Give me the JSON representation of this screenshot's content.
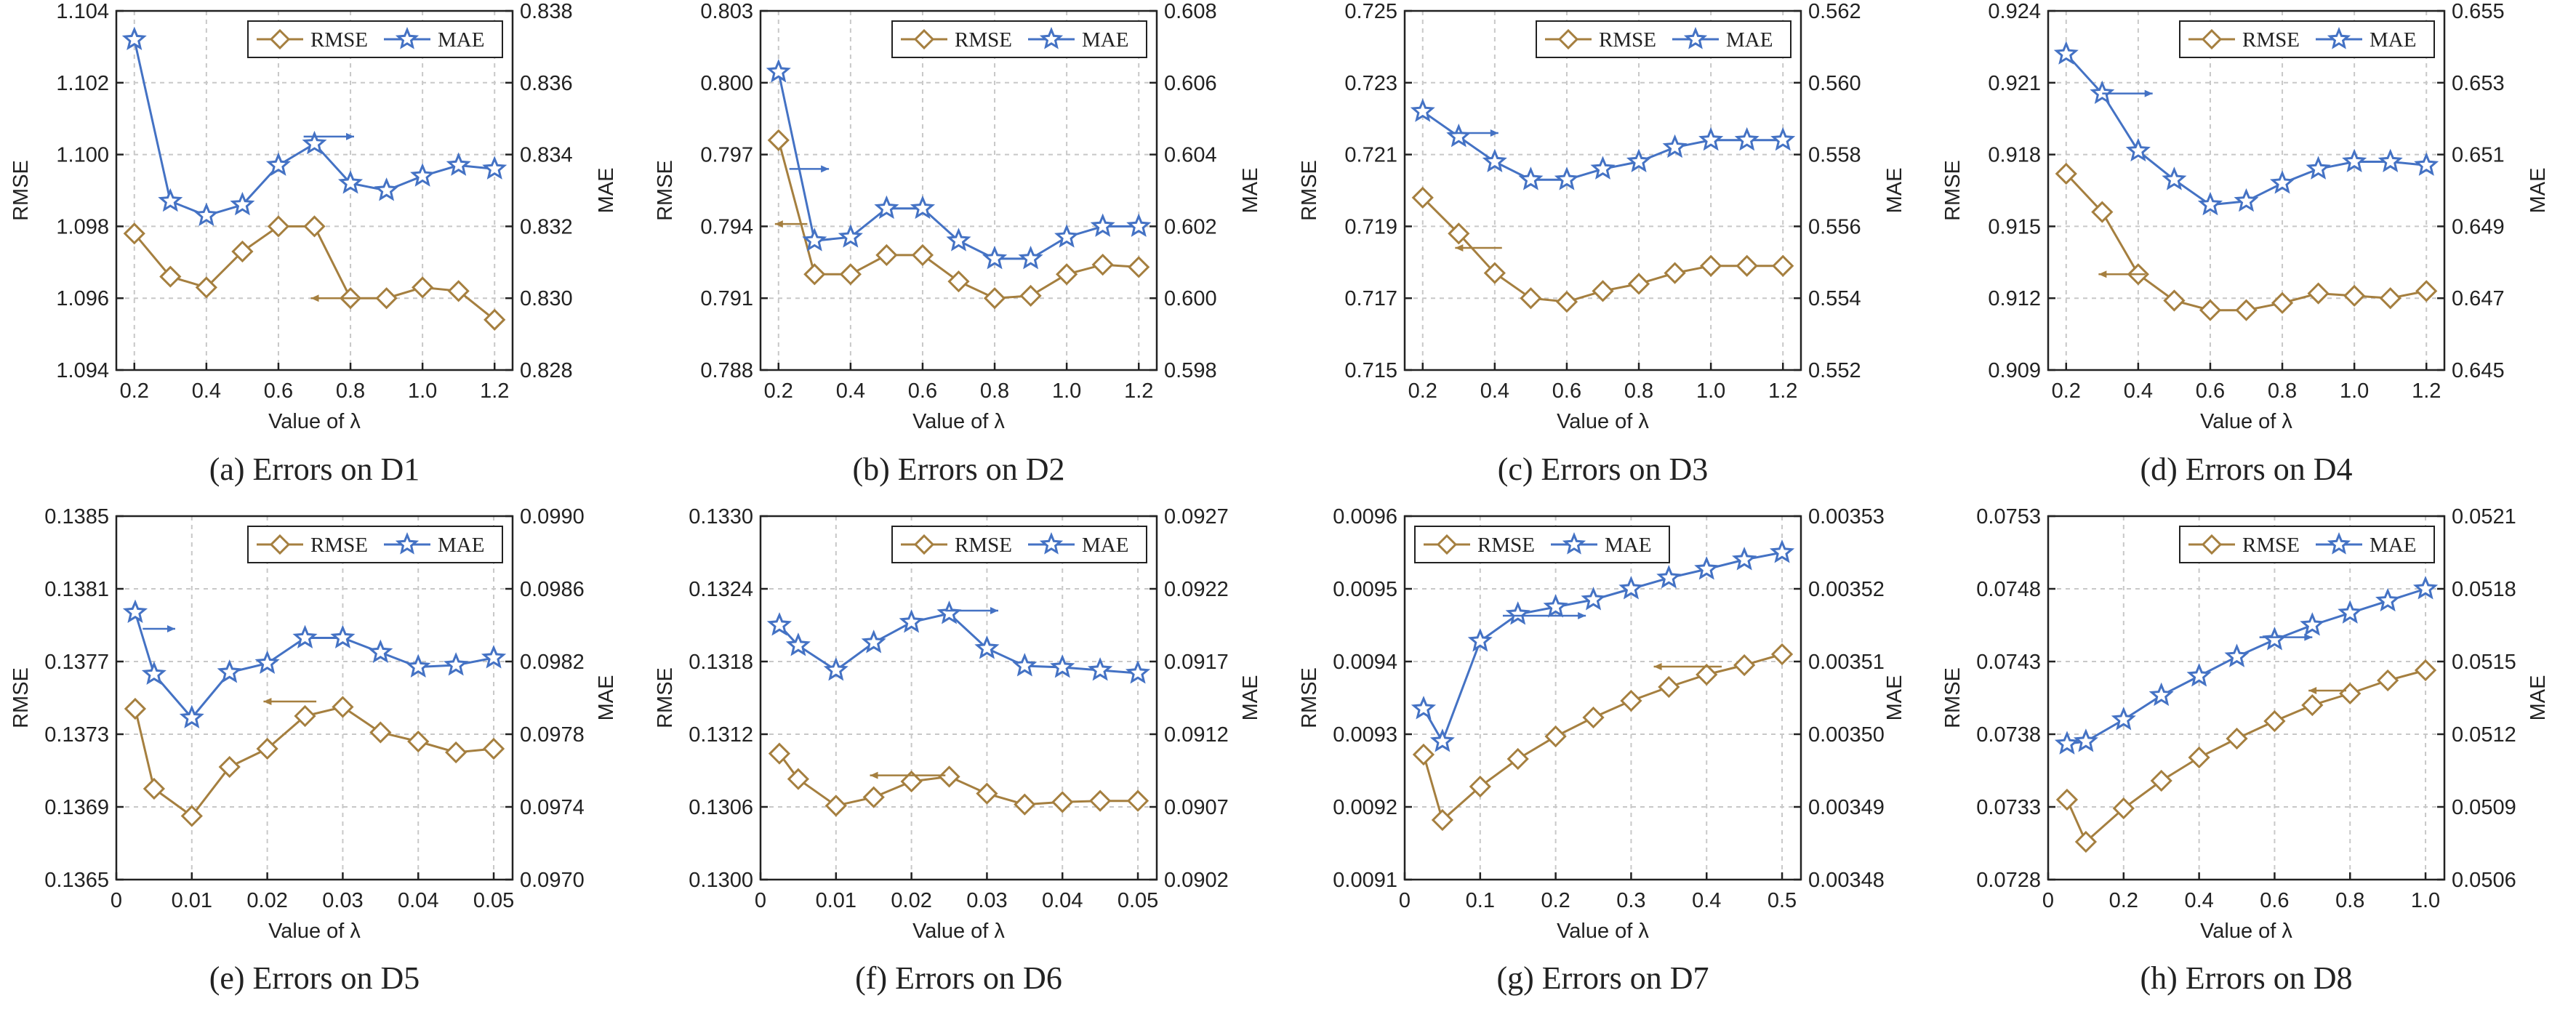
{
  "colors": {
    "rmse": "#A57F3F",
    "mae": "#4472C4",
    "grid": "#c8c8c8",
    "axis": "#222222"
  },
  "chart_data": [
    {
      "type": "line",
      "caption": "(a) Errors on D1",
      "xlabel": "Value of λ",
      "ylabel_left": "RMSE",
      "ylabel_right": "MAE",
      "x_ticks": [
        0.2,
        0.4,
        0.6,
        0.8,
        1.0,
        1.2
      ],
      "x_tick_labels": [
        "0.2",
        "0.4",
        "0.6",
        "0.8",
        "1.0",
        "1.2"
      ],
      "xlim": [
        0.15,
        1.25
      ],
      "ylim_left": [
        1.094,
        1.104
      ],
      "y_ticks_left": [
        "1.094",
        "1.096",
        "1.098",
        "1.100",
        "1.102",
        "1.104"
      ],
      "ylim_right": [
        0.828,
        0.838
      ],
      "y_ticks_right": [
        "0.828",
        "0.830",
        "0.832",
        "0.834",
        "0.836",
        "0.838"
      ],
      "legend": {
        "position": "top-right",
        "entries": [
          "RMSE",
          "MAE"
        ]
      },
      "grid": true,
      "x": [
        0.2,
        0.3,
        0.4,
        0.5,
        0.6,
        0.7,
        0.8,
        0.9,
        1.0,
        1.1,
        1.2
      ],
      "series": [
        {
          "name": "RMSE",
          "axis": "left",
          "marker": "diamond",
          "values": [
            1.0978,
            1.0966,
            1.0963,
            1.0973,
            1.098,
            1.098,
            1.096,
            1.096,
            1.0963,
            1.0962,
            1.0954
          ]
        },
        {
          "name": "MAE",
          "axis": "right",
          "marker": "star",
          "values": [
            0.8372,
            0.8327,
            0.8323,
            0.8326,
            0.8337,
            0.8343,
            0.8332,
            0.833,
            0.8334,
            0.8337,
            0.8336
          ]
        }
      ],
      "arrows": [
        {
          "series": "RMSE",
          "direction": "left",
          "x0": 0.82,
          "x1": 0.69,
          "y": 1.096
        },
        {
          "series": "MAE",
          "direction": "right",
          "x0": 0.67,
          "x1": 0.81,
          "y": 0.8345
        }
      ]
    },
    {
      "type": "line",
      "caption": "(b) Errors on D2",
      "xlabel": "Value of λ",
      "ylabel_left": "RMSE",
      "ylabel_right": "MAE",
      "x_ticks": [
        0.2,
        0.4,
        0.6,
        0.8,
        1.0,
        1.2
      ],
      "x_tick_labels": [
        "0.2",
        "0.4",
        "0.6",
        "0.8",
        "1.0",
        "1.2"
      ],
      "xlim": [
        0.15,
        1.25
      ],
      "ylim_left": [
        0.788,
        0.803
      ],
      "y_ticks_left": [
        "0.788",
        "0.791",
        "0.794",
        "0.797",
        "0.800",
        "0.803"
      ],
      "ylim_right": [
        0.598,
        0.608
      ],
      "y_ticks_right": [
        "0.598",
        "0.600",
        "0.602",
        "0.604",
        "0.606",
        "0.608"
      ],
      "legend": {
        "position": "top-right",
        "entries": [
          "RMSE",
          "MAE"
        ]
      },
      "grid": true,
      "x": [
        0.2,
        0.3,
        0.4,
        0.5,
        0.6,
        0.7,
        0.8,
        0.9,
        1.0,
        1.1,
        1.2
      ],
      "series": [
        {
          "name": "RMSE",
          "axis": "left",
          "marker": "diamond",
          "values": [
            0.7976,
            0.792,
            0.792,
            0.7928,
            0.7928,
            0.7917,
            0.791,
            0.7911,
            0.792,
            0.7924,
            0.7923
          ]
        },
        {
          "name": "MAE",
          "axis": "right",
          "marker": "star",
          "values": [
            0.6063,
            0.6016,
            0.6017,
            0.6025,
            0.6025,
            0.6016,
            0.6011,
            0.6011,
            0.6017,
            0.602,
            0.602
          ]
        }
      ],
      "arrows": [
        {
          "series": "RMSE",
          "direction": "left",
          "x0": 0.28,
          "x1": 0.19,
          "y": 0.7941
        },
        {
          "series": "MAE",
          "direction": "right",
          "x0": 0.23,
          "x1": 0.34,
          "y": 0.6036
        }
      ]
    },
    {
      "type": "line",
      "caption": "(c) Errors on D3",
      "xlabel": "Value of λ",
      "ylabel_left": "RMSE",
      "ylabel_right": "MAE",
      "x_ticks": [
        0.2,
        0.4,
        0.6,
        0.8,
        1.0,
        1.2
      ],
      "x_tick_labels": [
        "0.2",
        "0.4",
        "0.6",
        "0.8",
        "1.0",
        "1.2"
      ],
      "xlim": [
        0.15,
        1.25
      ],
      "ylim_left": [
        0.715,
        0.725
      ],
      "y_ticks_left": [
        "0.715",
        "0.717",
        "0.719",
        "0.721",
        "0.723",
        "0.725"
      ],
      "ylim_right": [
        0.552,
        0.562
      ],
      "y_ticks_right": [
        "0.552",
        "0.554",
        "0.556",
        "0.558",
        "0.560",
        "0.562"
      ],
      "legend": {
        "position": "top-right",
        "entries": [
          "RMSE",
          "MAE"
        ]
      },
      "grid": true,
      "x": [
        0.2,
        0.3,
        0.4,
        0.5,
        0.6,
        0.7,
        0.8,
        0.9,
        1.0,
        1.1,
        1.2
      ],
      "series": [
        {
          "name": "RMSE",
          "axis": "left",
          "marker": "diamond",
          "values": [
            0.7198,
            0.7188,
            0.7177,
            0.717,
            0.7169,
            0.7172,
            0.7174,
            0.7177,
            0.7179,
            0.7179,
            0.7179
          ]
        },
        {
          "name": "MAE",
          "axis": "right",
          "marker": "star",
          "values": [
            0.5592,
            0.5585,
            0.5578,
            0.5573,
            0.5573,
            0.5576,
            0.5578,
            0.5582,
            0.5584,
            0.5584,
            0.5584
          ]
        }
      ],
      "arrows": [
        {
          "series": "RMSE",
          "direction": "left",
          "x0": 0.42,
          "x1": 0.29,
          "y": 0.7184
        },
        {
          "series": "MAE",
          "direction": "right",
          "x0": 0.27,
          "x1": 0.41,
          "y": 0.5586
        }
      ]
    },
    {
      "type": "line",
      "caption": "(d) Errors on D4",
      "xlabel": "Value of λ",
      "ylabel_left": "RMSE",
      "ylabel_right": "MAE",
      "x_ticks": [
        0.2,
        0.4,
        0.6,
        0.8,
        1.0,
        1.2
      ],
      "x_tick_labels": [
        "0.2",
        "0.4",
        "0.6",
        "0.8",
        "1.0",
        "1.2"
      ],
      "xlim": [
        0.15,
        1.25
      ],
      "ylim_left": [
        0.909,
        0.924
      ],
      "y_ticks_left": [
        "0.909",
        "0.912",
        "0.915",
        "0.918",
        "0.921",
        "0.924"
      ],
      "ylim_right": [
        0.645,
        0.655
      ],
      "y_ticks_right": [
        "0.645",
        "0.647",
        "0.649",
        "0.651",
        "0.653",
        "0.655"
      ],
      "legend": {
        "position": "top-right",
        "entries": [
          "RMSE",
          "MAE"
        ]
      },
      "grid": true,
      "x": [
        0.2,
        0.3,
        0.4,
        0.5,
        0.6,
        0.7,
        0.8,
        0.9,
        1.0,
        1.1,
        1.2
      ],
      "series": [
        {
          "name": "RMSE",
          "axis": "left",
          "marker": "diamond",
          "values": [
            0.9172,
            0.9156,
            0.913,
            0.9119,
            0.9115,
            0.9115,
            0.9118,
            0.9122,
            0.9121,
            0.912,
            0.9123
          ]
        },
        {
          "name": "MAE",
          "axis": "right",
          "marker": "star",
          "values": [
            0.6538,
            0.6527,
            0.6511,
            0.6503,
            0.6496,
            0.6497,
            0.6502,
            0.6506,
            0.6508,
            0.6508,
            0.6507
          ]
        }
      ],
      "arrows": [
        {
          "series": "RMSE",
          "direction": "left",
          "x0": 0.42,
          "x1": 0.29,
          "y": 0.913
        },
        {
          "series": "MAE",
          "direction": "right",
          "x0": 0.3,
          "x1": 0.44,
          "y": 0.6527
        }
      ]
    },
    {
      "type": "line",
      "caption": "(e) Errors on D5",
      "xlabel": "Value of λ",
      "ylabel_left": "RMSE",
      "ylabel_right": "MAE",
      "x_ticks": [
        0,
        0.01,
        0.02,
        0.03,
        0.04,
        0.05
      ],
      "x_tick_labels": [
        "0",
        "0.01",
        "0.02",
        "0.03",
        "0.04",
        "0.05"
      ],
      "xlim": [
        0,
        0.0525
      ],
      "ylim_left": [
        0.1365,
        0.1385
      ],
      "y_ticks_left": [
        "0.1365",
        "0.1369",
        "0.1373",
        "0.1377",
        "0.1381",
        "0.1385"
      ],
      "ylim_right": [
        0.097,
        0.099
      ],
      "y_ticks_right": [
        "0.0970",
        "0.0974",
        "0.0978",
        "0.0982",
        "0.0986",
        "0.0990"
      ],
      "legend": {
        "position": "top-right",
        "entries": [
          "RMSE",
          "MAE"
        ]
      },
      "grid": true,
      "x": [
        0.0025,
        0.005,
        0.01,
        0.015,
        0.02,
        0.025,
        0.03,
        0.035,
        0.04,
        0.045,
        0.05
      ],
      "series": [
        {
          "name": "RMSE",
          "axis": "left",
          "marker": "diamond",
          "values": [
            0.13744,
            0.137,
            0.13685,
            0.13712,
            0.13722,
            0.1374,
            0.13745,
            0.13731,
            0.13726,
            0.1372,
            0.13722
          ]
        },
        {
          "name": "MAE",
          "axis": "right",
          "marker": "star",
          "values": [
            0.09847,
            0.09813,
            0.09789,
            0.09814,
            0.09819,
            0.09833,
            0.09833,
            0.09825,
            0.09817,
            0.09818,
            0.09822
          ]
        }
      ],
      "arrows": [
        {
          "series": "RMSE",
          "direction": "left",
          "x0": 0.0265,
          "x1": 0.0195,
          "y": 0.13748
        },
        {
          "series": "MAE",
          "direction": "right",
          "x0": 0.0035,
          "x1": 0.0078,
          "y": 0.09838
        }
      ]
    },
    {
      "type": "line",
      "caption": "(f) Errors on D6",
      "xlabel": "Value of λ",
      "ylabel_left": "RMSE",
      "ylabel_right": "MAE",
      "x_ticks": [
        0,
        0.01,
        0.02,
        0.03,
        0.04,
        0.05
      ],
      "x_tick_labels": [
        "0",
        "0.01",
        "0.02",
        "0.03",
        "0.04",
        "0.05"
      ],
      "xlim": [
        0,
        0.0525
      ],
      "ylim_left": [
        0.13,
        0.133
      ],
      "y_ticks_left": [
        "0.1300",
        "0.1306",
        "0.1312",
        "0.1318",
        "0.1324",
        "0.1330"
      ],
      "ylim_right": [
        0.0902,
        0.0927
      ],
      "y_ticks_right": [
        "0.0902",
        "0.0907",
        "0.0912",
        "0.0917",
        "0.0922",
        "0.0927"
      ],
      "legend": {
        "position": "top-right",
        "entries": [
          "RMSE",
          "MAE"
        ]
      },
      "grid": true,
      "x": [
        0.0025,
        0.005,
        0.01,
        0.015,
        0.02,
        0.025,
        0.03,
        0.035,
        0.04,
        0.045,
        0.05
      ],
      "series": [
        {
          "name": "RMSE",
          "axis": "left",
          "marker": "diamond",
          "values": [
            0.13104,
            0.13083,
            0.13061,
            0.13068,
            0.13081,
            0.13085,
            0.13071,
            0.13062,
            0.13064,
            0.13065,
            0.13065
          ]
        },
        {
          "name": "MAE",
          "axis": "right",
          "marker": "star",
          "values": [
            0.09195,
            0.09181,
            0.09164,
            0.09183,
            0.09197,
            0.09203,
            0.09179,
            0.09167,
            0.09166,
            0.09164,
            0.09162
          ]
        }
      ],
      "arrows": [
        {
          "series": "RMSE",
          "direction": "left",
          "x0": 0.0245,
          "x1": 0.0145,
          "y": 0.13086
        },
        {
          "series": "MAE",
          "direction": "right",
          "x0": 0.0245,
          "x1": 0.0315,
          "y": 0.09205
        }
      ]
    },
    {
      "type": "line",
      "caption": "(g) Errors on D7",
      "xlabel": "Value of λ",
      "ylabel_left": "RMSE",
      "ylabel_right": "MAE",
      "x_ticks": [
        0,
        0.1,
        0.2,
        0.3,
        0.4,
        0.5
      ],
      "x_tick_labels": [
        "0",
        "0.1",
        "0.2",
        "0.3",
        "0.4",
        "0.5"
      ],
      "xlim": [
        0,
        0.525
      ],
      "ylim_left": [
        0.0091,
        0.0096
      ],
      "y_ticks_left": [
        "0.0091",
        "0.0092",
        "0.0093",
        "0.0094",
        "0.0095",
        "0.0096"
      ],
      "ylim_right": [
        0.00348,
        0.00353
      ],
      "y_ticks_right": [
        "0.00348",
        "0.00349",
        "0.00350",
        "0.00351",
        "0.00352",
        "0.00353"
      ],
      "legend": {
        "position": "top-left",
        "entries": [
          "RMSE",
          "MAE"
        ]
      },
      "grid": true,
      "x": [
        0.025,
        0.05,
        0.1,
        0.15,
        0.2,
        0.25,
        0.3,
        0.35,
        0.4,
        0.45,
        0.5
      ],
      "series": [
        {
          "name": "RMSE",
          "axis": "left",
          "marker": "diamond",
          "values": [
            0.009272,
            0.009182,
            0.009228,
            0.009266,
            0.009297,
            0.009323,
            0.009346,
            0.009365,
            0.009382,
            0.009395,
            0.00941
          ]
        },
        {
          "name": "MAE",
          "axis": "right",
          "marker": "star",
          "values": [
            0.0035035,
            0.003499,
            0.0035128,
            0.0035165,
            0.0035175,
            0.0035185,
            0.00352,
            0.0035215,
            0.0035227,
            0.003524,
            0.003525
          ]
        }
      ],
      "arrows": [
        {
          "series": "RMSE",
          "direction": "left",
          "x0": 0.42,
          "x1": 0.33,
          "y": 0.009393
        },
        {
          "series": "MAE",
          "direction": "right",
          "x0": 0.13,
          "x1": 0.24,
          "y": 0.0035163
        }
      ]
    },
    {
      "type": "line",
      "caption": "(h) Errors on D8",
      "xlabel": "Value of λ",
      "ylabel_left": "RMSE",
      "ylabel_right": "MAE",
      "x_ticks": [
        0,
        0.2,
        0.4,
        0.6,
        0.8,
        1.0
      ],
      "x_tick_labels": [
        "0",
        "0.2",
        "0.4",
        "0.6",
        "0.8",
        "1.0"
      ],
      "xlim": [
        0,
        1.05
      ],
      "ylim_left": [
        0.0728,
        0.0753
      ],
      "y_ticks_left": [
        "0.0728",
        "0.0733",
        "0.0738",
        "0.0743",
        "0.0748",
        "0.0753"
      ],
      "ylim_right": [
        0.0506,
        0.0521
      ],
      "y_ticks_right": [
        "0.0506",
        "0.0509",
        "0.0512",
        "0.0515",
        "0.0518",
        "0.0521"
      ],
      "legend": {
        "position": "top-right",
        "entries": [
          "RMSE",
          "MAE"
        ]
      },
      "grid": true,
      "x": [
        0.05,
        0.1,
        0.2,
        0.3,
        0.4,
        0.5,
        0.6,
        0.7,
        0.8,
        0.9,
        1.0
      ],
      "series": [
        {
          "name": "RMSE",
          "axis": "left",
          "marker": "diamond",
          "values": [
            0.07335,
            0.07306,
            0.07329,
            0.07348,
            0.07364,
            0.07377,
            0.07389,
            0.074,
            0.07408,
            0.07417,
            0.07424
          ]
        },
        {
          "name": "MAE",
          "axis": "right",
          "marker": "star",
          "values": [
            0.05116,
            0.05117,
            0.05126,
            0.05136,
            0.05144,
            0.05152,
            0.05159,
            0.05165,
            0.0517,
            0.05175,
            0.0518
          ]
        }
      ],
      "arrows": [
        {
          "series": "RMSE",
          "direction": "left",
          "x0": 0.79,
          "x1": 0.69,
          "y": 0.0741
        },
        {
          "series": "MAE",
          "direction": "right",
          "x0": 0.56,
          "x1": 0.7,
          "y": 0.0516
        }
      ]
    }
  ]
}
